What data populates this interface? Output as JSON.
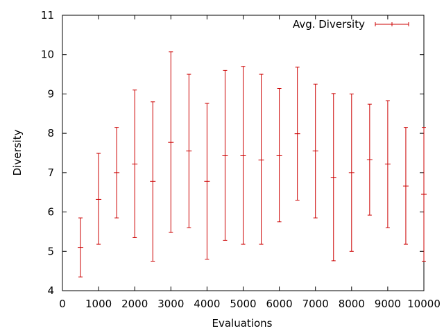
{
  "chart_data": {
    "type": "scatter",
    "style": "errorbars",
    "title": "",
    "xlabel": "Evaluations",
    "ylabel": "Diversity",
    "xlim": [
      0,
      10000
    ],
    "ylim": [
      4,
      11
    ],
    "xticks": [
      0,
      1000,
      2000,
      3000,
      4000,
      5000,
      6000,
      7000,
      8000,
      9000,
      10000
    ],
    "yticks": [
      4,
      5,
      6,
      7,
      8,
      9,
      10,
      11
    ],
    "grid": false,
    "legend_position": "top-right",
    "series": [
      {
        "name": "Avg. Diversity",
        "color": "#cc0000",
        "points": [
          {
            "x": 500,
            "y": 5.1,
            "ymin": 4.35,
            "ymax": 5.85
          },
          {
            "x": 1000,
            "y": 6.32,
            "ymin": 5.18,
            "ymax": 7.49
          },
          {
            "x": 1500,
            "y": 7.0,
            "ymin": 5.85,
            "ymax": 8.15
          },
          {
            "x": 2000,
            "y": 7.22,
            "ymin": 5.35,
            "ymax": 9.1
          },
          {
            "x": 2500,
            "y": 6.78,
            "ymin": 4.75,
            "ymax": 8.8
          },
          {
            "x": 3000,
            "y": 7.77,
            "ymin": 5.48,
            "ymax": 10.07
          },
          {
            "x": 3500,
            "y": 7.55,
            "ymin": 5.6,
            "ymax": 9.5
          },
          {
            "x": 4000,
            "y": 6.78,
            "ymin": 4.8,
            "ymax": 8.76
          },
          {
            "x": 4500,
            "y": 7.43,
            "ymin": 5.28,
            "ymax": 9.6
          },
          {
            "x": 5000,
            "y": 7.43,
            "ymin": 5.18,
            "ymax": 9.7
          },
          {
            "x": 5500,
            "y": 7.32,
            "ymin": 5.18,
            "ymax": 9.5
          },
          {
            "x": 6000,
            "y": 7.43,
            "ymin": 5.75,
            "ymax": 9.14
          },
          {
            "x": 6500,
            "y": 7.99,
            "ymin": 6.3,
            "ymax": 9.68
          },
          {
            "x": 7000,
            "y": 7.55,
            "ymin": 5.85,
            "ymax": 9.25
          },
          {
            "x": 7500,
            "y": 6.88,
            "ymin": 4.76,
            "ymax": 9.01
          },
          {
            "x": 8000,
            "y": 7.0,
            "ymin": 5.0,
            "ymax": 9.0
          },
          {
            "x": 8500,
            "y": 7.33,
            "ymin": 5.92,
            "ymax": 8.74
          },
          {
            "x": 9000,
            "y": 7.22,
            "ymin": 5.6,
            "ymax": 8.83
          },
          {
            "x": 9500,
            "y": 6.66,
            "ymin": 5.18,
            "ymax": 8.15
          },
          {
            "x": 10000,
            "y": 6.45,
            "ymin": 4.75,
            "ymax": 8.15
          }
        ]
      }
    ]
  }
}
